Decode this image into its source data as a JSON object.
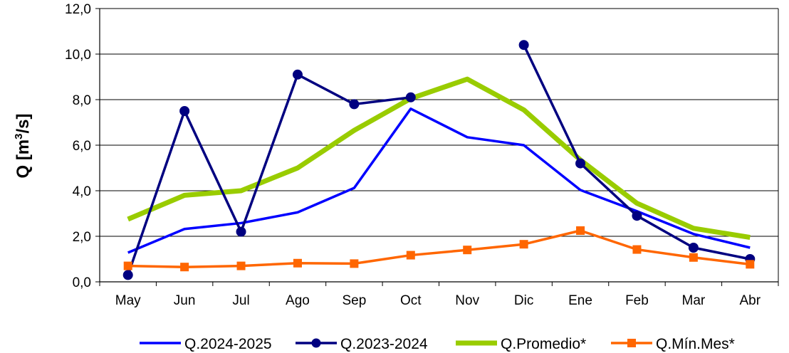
{
  "chart_data": {
    "type": "line",
    "ylabel": {
      "main": "Q [m",
      "sup": "3",
      "end": "/s]"
    },
    "xlabel": "",
    "ylim": [
      0,
      12
    ],
    "ytick_labels": [
      "0,0",
      "2,0",
      "4,0",
      "6,0",
      "8,0",
      "10,0",
      "12,0"
    ],
    "categories": [
      "May",
      "Jun",
      "Jul",
      "Ago",
      "Sep",
      "Oct",
      "Nov",
      "Dic",
      "Ene",
      "Feb",
      "Mar",
      "Abr"
    ],
    "grid": "horizontal",
    "legend_position": "bottom",
    "series": [
      {
        "name": "Q.2024-2025",
        "color": "#0000ff",
        "marker": "none",
        "values": [
          1.28,
          2.32,
          2.58,
          3.05,
          4.12,
          7.6,
          6.35,
          6.0,
          4.03,
          3.1,
          2.1,
          1.5
        ]
      },
      {
        "name": "Q.2023-2024",
        "color": "#000080",
        "marker": "circle",
        "values": [
          0.3,
          7.5,
          2.2,
          9.1,
          7.8,
          8.1,
          null,
          10.4,
          5.2,
          2.9,
          1.5,
          1.0
        ]
      },
      {
        "name": "Q.Promedio*",
        "color": "#99cc00",
        "marker": "none",
        "values": [
          2.75,
          3.8,
          4.0,
          5.0,
          6.65,
          8.05,
          8.9,
          7.55,
          5.35,
          3.45,
          2.35,
          1.95
        ]
      },
      {
        "name": "Q.Mín.Mes*",
        "color": "#ff6600",
        "marker": "square",
        "values": [
          0.7,
          0.65,
          0.7,
          0.82,
          0.8,
          1.17,
          1.4,
          1.65,
          2.25,
          1.42,
          1.07,
          0.77
        ]
      }
    ]
  }
}
